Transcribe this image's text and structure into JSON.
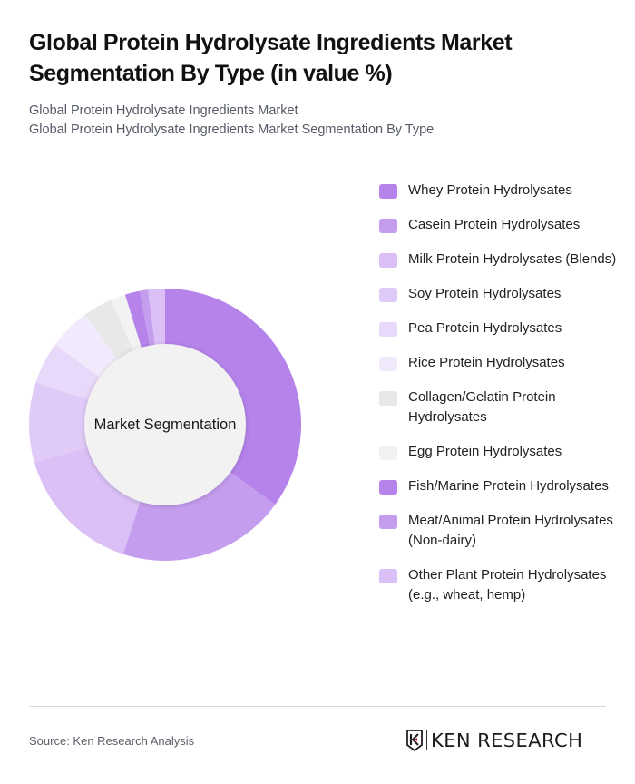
{
  "header": {
    "title": "Global Protein Hydrolysate Ingredients Market Segmentation By Type (in value %)",
    "subtitle_line1": "Global Protein Hydrolysate Ingredients Market",
    "subtitle_line2": "Global Protein Hydrolysate Ingredients Market Segmentation By Type"
  },
  "chart": {
    "center_label": "Market Segmentation"
  },
  "legend": [
    {
      "label": "Whey Protein Hydrolysates",
      "color": "#B583EA"
    },
    {
      "label": "Casein Protein Hydrolysates",
      "color": "#C59DEE"
    },
    {
      "label": "Milk Protein Hydrolysates (Blends)",
      "color": "#DAC0F6"
    },
    {
      "label": "Soy Protein Hydrolysates",
      "color": "#E0CAF7"
    },
    {
      "label": "Pea Protein Hydrolysates",
      "color": "#E8D8F9"
    },
    {
      "label": "Rice Protein Hydrolysates",
      "color": "#F1EAFC"
    },
    {
      "label": "Collagen/Gelatin Protein Hydrolysates",
      "color": "#E8E8E8"
    },
    {
      "label": "Egg Protein Hydrolysates",
      "color": "#F2F2F2"
    },
    {
      "label": "Fish/Marine Protein Hydrolysates",
      "color": "#B583EA"
    },
    {
      "label": "Meat/Animal Protein Hydrolysates (Non-dairy)",
      "color": "#C59DEE"
    },
    {
      "label": "Other Plant Protein Hydrolysates (e.g., wheat, hemp)",
      "color": "#DAC0F6"
    }
  ],
  "footer": {
    "source": "Source: Ken Research Analysis",
    "logo_text": "KEN RESEARCH"
  },
  "chart_data": {
    "type": "pie",
    "variant": "donut",
    "title": "Global Protein Hydrolysate Ingredients Market Segmentation By Type (in value %)",
    "center_label": "Market Segmentation",
    "categories": [
      "Whey Protein Hydrolysates",
      "Casein Protein Hydrolysates",
      "Milk Protein Hydrolysates (Blends)",
      "Soy Protein Hydrolysates",
      "Pea Protein Hydrolysates",
      "Rice Protein Hydrolysates",
      "Collagen/Gelatin Protein Hydrolysates",
      "Egg Protein Hydrolysates",
      "Fish/Marine Protein Hydrolysates",
      "Meat/Animal Protein Hydrolysates (Non-dairy)",
      "Other Plant Protein Hydrolysates (e.g., wheat, hemp)"
    ],
    "values": [
      35,
      20,
      15.5,
      9.5,
      5,
      5,
      3.5,
      1.75,
      1.75,
      1,
      2
    ],
    "colors": [
      "#B583EA",
      "#C59DEE",
      "#DAC0F6",
      "#E0CAF7",
      "#E8D8F9",
      "#F1EAFC",
      "#E8E8E8",
      "#F2F2F2",
      "#B583EA",
      "#C59DEE",
      "#DAC0F6"
    ],
    "unit": "%",
    "start_angle_deg": 0,
    "direction": "clockwise",
    "legend_position": "right"
  }
}
